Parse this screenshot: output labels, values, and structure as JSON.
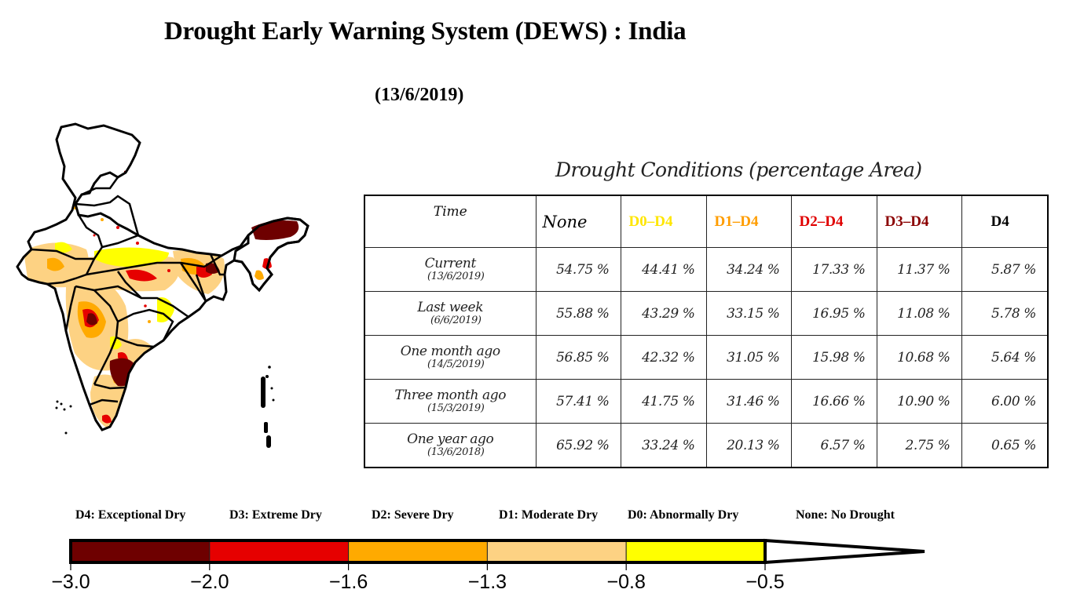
{
  "title": "Drought Early Warning System (DEWS) : India",
  "date": "(13/6/2019)",
  "map": {
    "region": "India",
    "description": "Drought severity map of India with state boundaries"
  },
  "table": {
    "title": "Drought Conditions (percentage Area)",
    "headers": [
      {
        "label": "Time",
        "color": "#111111"
      },
      {
        "label": "None",
        "color": "#000000"
      },
      {
        "label": "D0–D4",
        "color": "#ffe600"
      },
      {
        "label": "D1–D4",
        "color": "#ff9d00"
      },
      {
        "label": "D2–D4",
        "color": "#e00000"
      },
      {
        "label": "D3–D4",
        "color": "#8b0000"
      },
      {
        "label": "D4",
        "color": "#000000"
      }
    ],
    "rows": [
      {
        "time": "Current",
        "date": "(13/6/2019)",
        "values": [
          "54.75 %",
          "44.41 %",
          "34.24 %",
          "17.33 %",
          "11.37 %",
          "5.87 %"
        ]
      },
      {
        "time": "Last week",
        "date": "(6/6/2019)",
        "values": [
          "55.88 %",
          "43.29 %",
          "33.15 %",
          "16.95 %",
          "11.08 %",
          "5.78 %"
        ]
      },
      {
        "time": "One month ago",
        "date": "(14/5/2019)",
        "values": [
          "56.85 %",
          "42.32 %",
          "31.05 %",
          "15.98 %",
          "10.68 %",
          "5.64 %"
        ]
      },
      {
        "time": "Three month ago",
        "date": "(15/3/2019)",
        "values": [
          "57.41 %",
          "41.75 %",
          "31.46 %",
          "16.66 %",
          "10.90 %",
          "6.00 %"
        ]
      },
      {
        "time": "One year ago",
        "date": "(13/6/2018)",
        "values": [
          "65.92 %",
          "33.24 %",
          "20.13 %",
          "6.57 %",
          "2.75 %",
          "0.65 %"
        ]
      }
    ]
  },
  "legend": {
    "categories": [
      {
        "label": "D4: Exceptional Dry",
        "color": "#6e0000"
      },
      {
        "label": "D3: Extreme Dry",
        "color": "#e60000"
      },
      {
        "label": "D2: Severe Dry",
        "color": "#ffaa00"
      },
      {
        "label": "D1: Moderate Dry",
        "color": "#fdd283"
      },
      {
        "label": "D0: Abnormally Dry",
        "color": "#ffff00"
      },
      {
        "label": "None: No Drought",
        "color": "#ffffff"
      }
    ],
    "ticks": [
      "−3.0",
      "−2.0",
      "−1.6",
      "−1.3",
      "−0.8",
      "−0.5"
    ]
  }
}
